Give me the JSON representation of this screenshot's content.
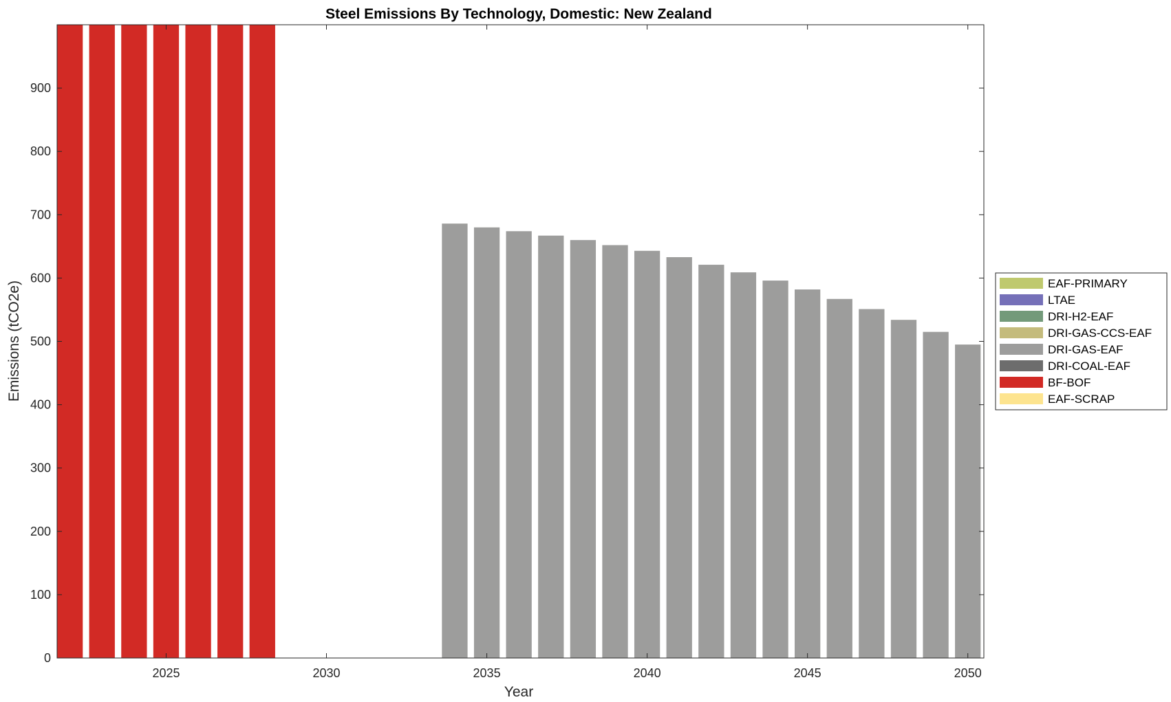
{
  "chart_data": {
    "type": "bar",
    "title": "Steel Emissions By Technology, Domestic: New Zealand",
    "xlabel": "Year",
    "ylabel": "Emissions (tCO2e)",
    "x": [
      2022,
      2023,
      2024,
      2025,
      2026,
      2027,
      2028,
      2029,
      2030,
      2031,
      2032,
      2033,
      2034,
      2035,
      2036,
      2037,
      2038,
      2039,
      2040,
      2041,
      2042,
      2043,
      2044,
      2045,
      2046,
      2047,
      2048,
      2049,
      2050
    ],
    "xlim": [
      2021.6,
      2050.5
    ],
    "ylim": [
      0,
      1000
    ],
    "xticks": [
      2025,
      2030,
      2035,
      2040,
      2045,
      2050
    ],
    "yticks": [
      0,
      100,
      200,
      300,
      400,
      500,
      600,
      700,
      800,
      900
    ],
    "grid": false,
    "stacked": true,
    "legend_position": "outside-right",
    "series": [
      {
        "name": "EAF-PRIMARY",
        "color": "#bfc96e",
        "values": [
          0,
          0,
          0,
          0,
          0,
          0,
          0,
          0,
          0,
          0,
          0,
          0,
          0,
          0,
          0,
          0,
          0,
          0,
          0,
          0,
          0,
          0,
          0,
          0,
          0,
          0,
          0,
          0,
          0
        ]
      },
      {
        "name": "LTAE",
        "color": "#7570b8",
        "values": [
          0,
          0,
          0,
          0,
          0,
          0,
          0,
          0,
          0,
          0,
          0,
          0,
          0,
          0,
          0,
          0,
          0,
          0,
          0,
          0,
          0,
          0,
          0,
          0,
          0,
          0,
          0,
          0,
          0
        ]
      },
      {
        "name": "DRI-H2-EAF",
        "color": "#739a7a",
        "values": [
          0,
          0,
          0,
          0,
          0,
          0,
          0,
          0,
          0,
          0,
          0,
          0,
          0,
          0,
          0,
          0,
          0,
          0,
          0,
          0,
          0,
          0,
          0,
          0,
          0,
          0,
          0,
          0,
          0
        ]
      },
      {
        "name": "DRI-GAS-CCS-EAF",
        "color": "#c4bb7c",
        "values": [
          0,
          0,
          0,
          0,
          0,
          0,
          0,
          0,
          0,
          0,
          0,
          0,
          0,
          0,
          0,
          0,
          0,
          0,
          0,
          0,
          0,
          0,
          0,
          0,
          0,
          0,
          0,
          0,
          0
        ]
      },
      {
        "name": "DRI-GAS-EAF",
        "color": "#9d9d9c",
        "values": [
          0,
          0,
          0,
          0,
          0,
          0,
          0,
          0,
          0,
          0,
          0,
          0,
          686,
          680,
          674,
          667,
          660,
          652,
          643,
          633,
          621,
          609,
          596,
          582,
          567,
          551,
          534,
          515,
          495
        ]
      },
      {
        "name": "DRI-COAL-EAF",
        "color": "#6d6d6d",
        "values": [
          0,
          0,
          0,
          0,
          0,
          0,
          0,
          0,
          0,
          0,
          0,
          0,
          0,
          0,
          0,
          0,
          0,
          0,
          0,
          0,
          0,
          0,
          0,
          0,
          0,
          0,
          0,
          0,
          0
        ]
      },
      {
        "name": "BF-BOF",
        "color": "#d22a25",
        "values": [
          1000,
          1000,
          1000,
          1000,
          1000,
          1000,
          1000,
          0,
          0,
          0,
          0,
          0,
          0,
          0,
          0,
          0,
          0,
          0,
          0,
          0,
          0,
          0,
          0,
          0,
          0,
          0,
          0,
          0,
          0
        ]
      },
      {
        "name": "EAF-SCRAP",
        "color": "#fde48f",
        "values": [
          0,
          0,
          0,
          0,
          0,
          0,
          0,
          0,
          0,
          0,
          0,
          0,
          0,
          0,
          0,
          0,
          0,
          0,
          0,
          0,
          0,
          0,
          0,
          0,
          0,
          0,
          0,
          0,
          0
        ]
      }
    ]
  }
}
